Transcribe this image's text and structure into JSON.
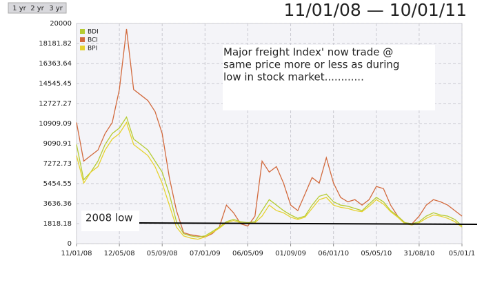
{
  "chart_data": {
    "type": "line",
    "title": "11/01/08 — 10/01/11",
    "range_buttons": [
      "1 yr",
      "2 yr",
      "3 yr"
    ],
    "annotation_lines": [
      "Major freight Index' now trade @",
      "same price more or less as during",
      "low in stock market............"
    ],
    "low_label": "2008 low",
    "categories": [
      "11/01/08",
      null,
      null,
      null,
      null,
      null,
      "12/05/08",
      null,
      null,
      null,
      null,
      null,
      "05/09/08",
      null,
      null,
      null,
      null,
      null,
      "07/01/09",
      null,
      null,
      null,
      null,
      null,
      "06/05/09",
      null,
      null,
      null,
      null,
      null,
      "01/09/09",
      null,
      null,
      null,
      null,
      null,
      "06/01/10",
      null,
      null,
      null,
      null,
      null,
      "05/05/10",
      null,
      null,
      null,
      null,
      null,
      "31/08/10",
      null,
      null,
      null,
      null,
      null,
      "05/01/1"
    ],
    "series": [
      {
        "name": "BDI",
        "color": "#b5cc32",
        "values": [
          9000,
          5800,
          6500,
          7500,
          9000,
          10000,
          10500,
          11500,
          9500,
          9000,
          8500,
          7500,
          6500,
          4500,
          2000,
          900,
          700,
          600,
          700,
          1100,
          1500,
          2000,
          2200,
          2000,
          1900,
          2000,
          3000,
          4000,
          3500,
          3000,
          2600,
          2300,
          2500,
          3500,
          4300,
          4500,
          3800,
          3500,
          3400,
          3200,
          3000,
          3600,
          4200,
          3800,
          3000,
          2500,
          1900,
          1800,
          2000,
          2500,
          2800,
          2600,
          2500,
          2200,
          1600
        ]
      },
      {
        "name": "BCI",
        "color": "#d2693c",
        "values": [
          11000,
          7500,
          8000,
          8500,
          10000,
          11000,
          14000,
          19500,
          14000,
          13500,
          13000,
          12000,
          10000,
          6000,
          3000,
          1000,
          800,
          700,
          600,
          900,
          1500,
          3500,
          2800,
          1800,
          1600,
          2500,
          7500,
          6500,
          7000,
          5500,
          3500,
          3000,
          4500,
          6000,
          5500,
          7800,
          5500,
          4200,
          3800,
          4000,
          3500,
          4000,
          5200,
          5000,
          3500,
          2500,
          1900,
          1800,
          2500,
          3500,
          4000,
          3800,
          3500,
          3000,
          2500
        ]
      },
      {
        "name": "BPI",
        "color": "#e6d22e",
        "values": [
          8000,
          5500,
          6500,
          7000,
          8500,
          9500,
          10000,
          11000,
          9000,
          8500,
          8000,
          7000,
          5500,
          3500,
          1500,
          700,
          500,
          400,
          600,
          1000,
          1400,
          1900,
          2100,
          1900,
          1800,
          1900,
          2500,
          3500,
          3000,
          2800,
          2400,
          2200,
          2400,
          3200,
          4000,
          4200,
          3500,
          3300,
          3200,
          3000,
          2900,
          3400,
          4000,
          3600,
          2900,
          2400,
          1800,
          1700,
          1900,
          2300,
          2600,
          2500,
          2300,
          2000,
          1500
        ]
      }
    ],
    "ylim": [
      0,
      20000
    ],
    "yticks": [
      0,
      1818.18,
      3636.36,
      5454.55,
      7272.73,
      9090.91,
      10909.09,
      12727.27,
      14545.45,
      16363.64,
      18181.82,
      20000
    ],
    "grid": true
  }
}
